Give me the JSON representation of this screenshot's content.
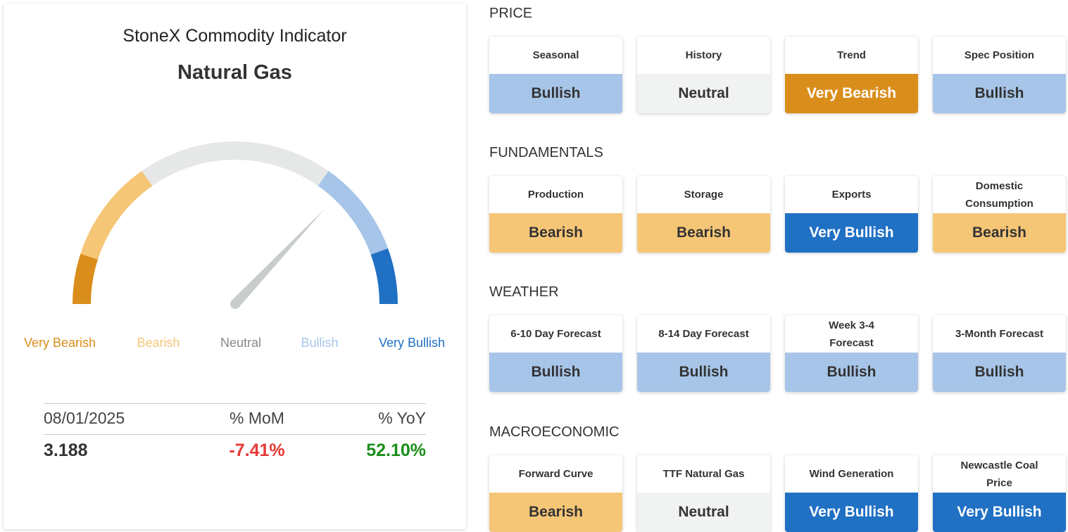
{
  "indicator": {
    "title": "StoneX Commodity Indicator",
    "commodity": "Natural Gas",
    "scale": [
      "Very Bearish",
      "Bearish",
      "Neutral",
      "Bullish",
      "Very Bullish"
    ],
    "table": {
      "header": [
        "08/01/2025",
        "% MoM",
        "% YoY"
      ],
      "values": [
        "3.188",
        "-7.41%",
        "52.10%"
      ]
    }
  },
  "sections": [
    {
      "title": "PRICE",
      "cards": [
        {
          "label": "Seasonal",
          "rating": "Bullish"
        },
        {
          "label": "History",
          "rating": "Neutral"
        },
        {
          "label": "Trend",
          "rating": "Very Bearish"
        },
        {
          "label": "Spec Position",
          "rating": "Bullish"
        }
      ]
    },
    {
      "title": "FUNDAMENTALS",
      "cards": [
        {
          "label": "Production",
          "rating": "Bearish"
        },
        {
          "label": "Storage",
          "rating": "Bearish"
        },
        {
          "label": "Exports",
          "rating": "Very Bullish"
        },
        {
          "label": "Domestic Consumption",
          "rating": "Bearish"
        }
      ]
    },
    {
      "title": "WEATHER",
      "cards": [
        {
          "label": "6-10 Day Forecast",
          "rating": "Bullish"
        },
        {
          "label": "8-14 Day Forecast",
          "rating": "Bullish"
        },
        {
          "label": "Week 3-4 Forecast",
          "rating": "Bullish"
        },
        {
          "label": "3-Month Forecast",
          "rating": "Bullish"
        }
      ]
    },
    {
      "title": "MACROECONOMIC",
      "cards": [
        {
          "label": "Forward Curve",
          "rating": "Bearish"
        },
        {
          "label": "TTF Natural Gas",
          "rating": "Neutral"
        },
        {
          "label": "Wind Generation",
          "rating": "Very Bullish"
        },
        {
          "label": "Newcastle Coal Price",
          "rating": "Very Bullish"
        }
      ]
    }
  ]
}
